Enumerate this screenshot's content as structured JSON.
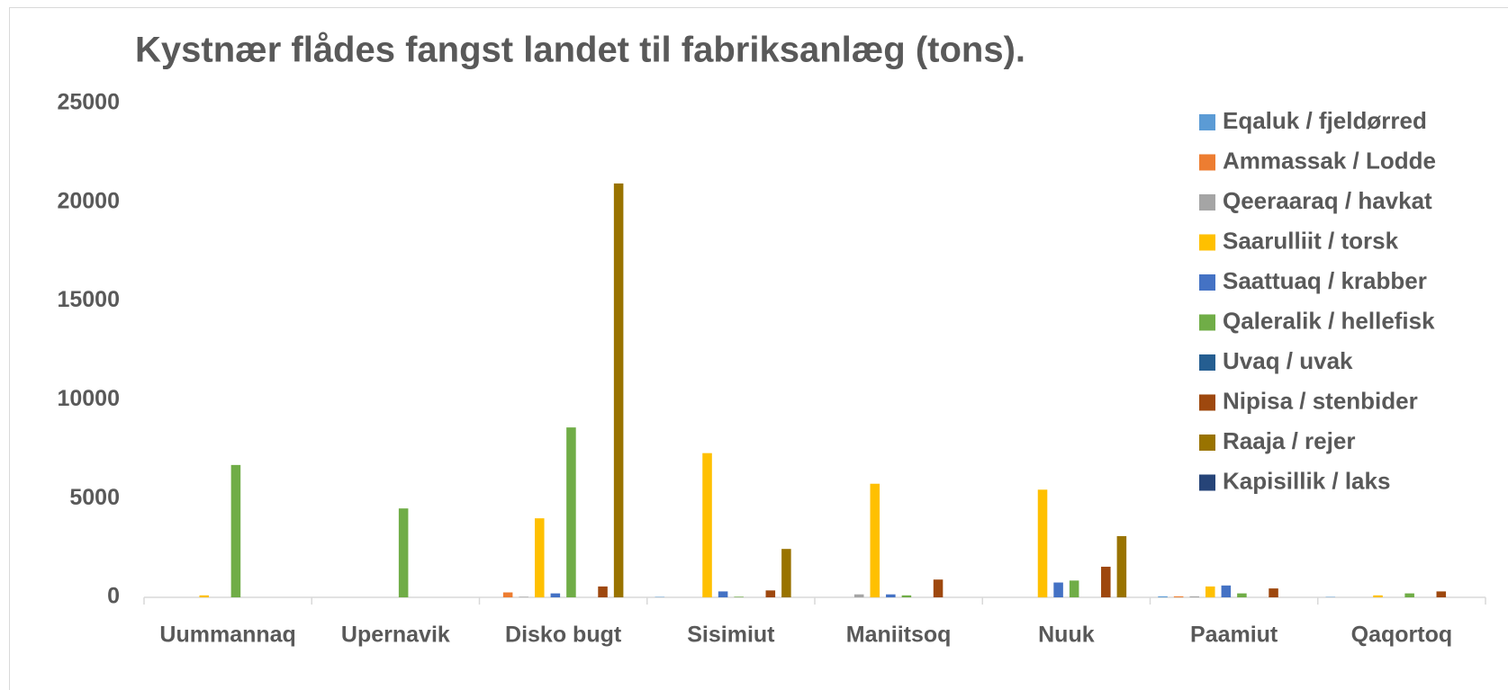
{
  "chart_data": {
    "type": "bar",
    "title": "Kystnær flådes fangst landet til fabriksanlæg (tons).",
    "categories": [
      "Uummannaq",
      "Upernavik",
      "Disko bugt",
      "Sisimiut",
      "Maniitsoq",
      "Nuuk",
      "Paamiut",
      "Qaqortoq"
    ],
    "series": [
      {
        "name": "Eqaluk / fjeldørred",
        "color": "#5b9bd5",
        "values": [
          0,
          0,
          0,
          20,
          0,
          0,
          50,
          20
        ]
      },
      {
        "name": "Ammassak / Lodde",
        "color": "#ed7d31",
        "values": [
          0,
          0,
          250,
          0,
          0,
          0,
          50,
          0
        ]
      },
      {
        "name": "Qeeraaraq / havkat",
        "color": "#a5a5a5",
        "values": [
          0,
          0,
          30,
          0,
          150,
          0,
          50,
          0
        ]
      },
      {
        "name": "Saarulliit / torsk",
        "color": "#ffc000",
        "values": [
          100,
          0,
          4000,
          7300,
          5750,
          5450,
          550,
          100
        ]
      },
      {
        "name": "Saattuaq / krabber",
        "color": "#4472c4",
        "values": [
          0,
          0,
          200,
          300,
          150,
          750,
          600,
          0
        ]
      },
      {
        "name": "Qaleralik / hellefisk",
        "color": "#70ad47",
        "values": [
          6700,
          4500,
          8600,
          30,
          100,
          850,
          200,
          200
        ]
      },
      {
        "name": "Uvaq / uvak",
        "color": "#255e91",
        "values": [
          0,
          0,
          0,
          0,
          0,
          0,
          0,
          0
        ]
      },
      {
        "name": "Nipisa / stenbider",
        "color": "#9e480e",
        "values": [
          0,
          0,
          550,
          350,
          900,
          1550,
          450,
          300
        ]
      },
      {
        "name": "Raaja / rejer",
        "color": "#997300",
        "values": [
          0,
          0,
          20950,
          2450,
          0,
          3100,
          0,
          0
        ]
      },
      {
        "name": "Kapisillik / laks",
        "color": "#264478",
        "values": [
          0,
          0,
          0,
          0,
          0,
          0,
          0,
          0
        ]
      }
    ],
    "ylim": [
      0,
      25000
    ],
    "yticks": [
      0,
      5000,
      10000,
      15000,
      20000,
      25000
    ],
    "grid": false,
    "legend": "right"
  }
}
